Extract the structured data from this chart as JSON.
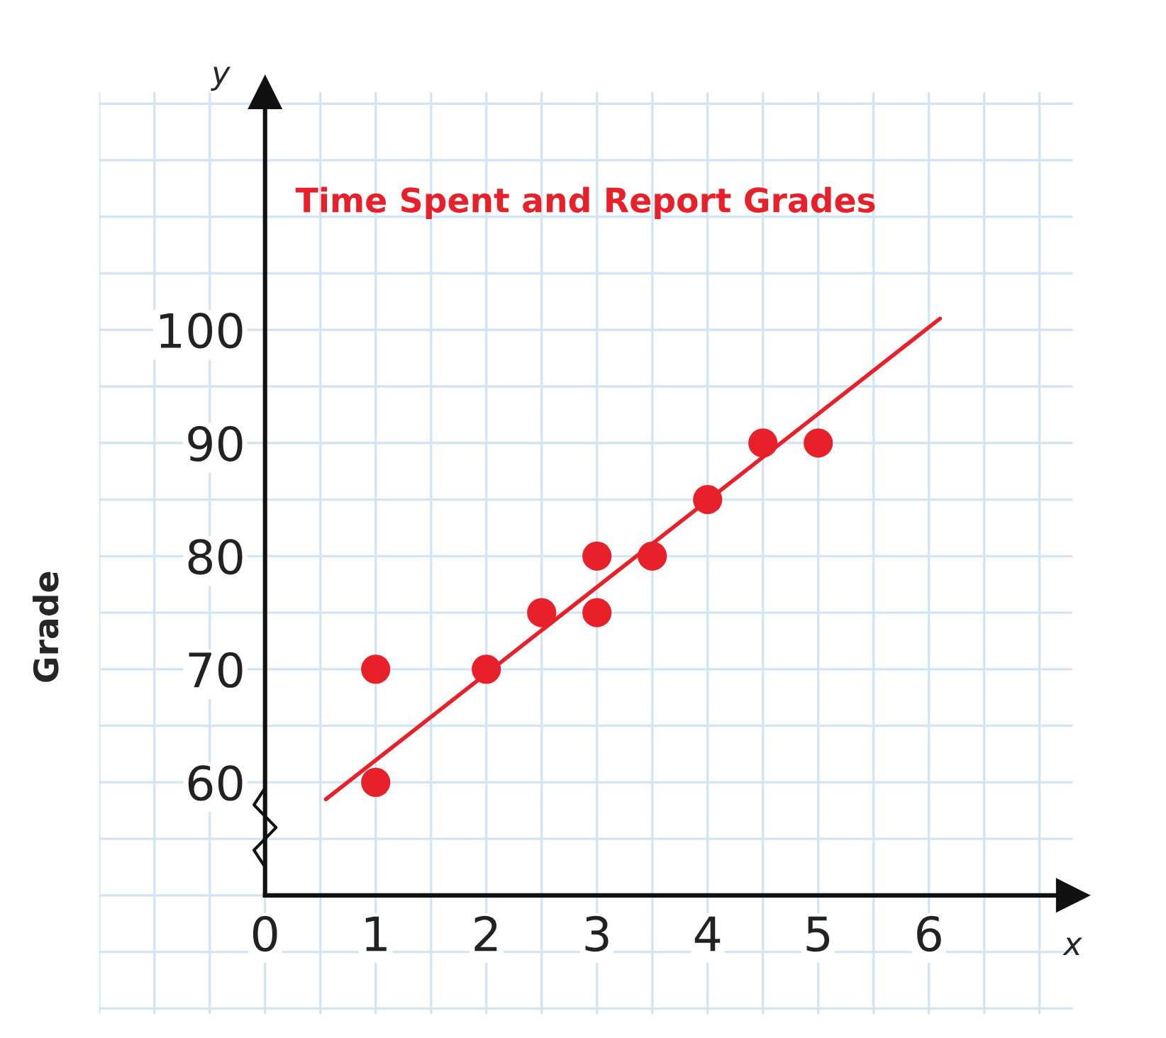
{
  "chart_data": {
    "type": "scatter",
    "title": "Time Spent and Report Grades",
    "ylabel": "Grade",
    "annotations": [
      "x",
      "y"
    ],
    "series": [
      {
        "type": "scatter",
        "color": "#e8202a",
        "marker": "circle",
        "x": [
          1,
          1,
          2,
          2.5,
          3,
          3,
          3.5,
          4,
          4.5,
          5
        ],
        "values": [
          70,
          60,
          70,
          75,
          80,
          75,
          80,
          85,
          90,
          90
        ]
      },
      {
        "type": "line",
        "color": "#e8202a",
        "x": [
          0.55,
          6.1
        ],
        "values": [
          58.5,
          101
        ]
      }
    ],
    "xlim": [
      -1.5,
      7.3
    ],
    "ylim": [
      39.5,
      121
    ],
    "xticks": [
      0,
      1,
      2,
      3,
      4,
      5,
      6
    ],
    "yticks": [
      60,
      70,
      80,
      90,
      100
    ],
    "grid": true,
    "legend": false
  }
}
